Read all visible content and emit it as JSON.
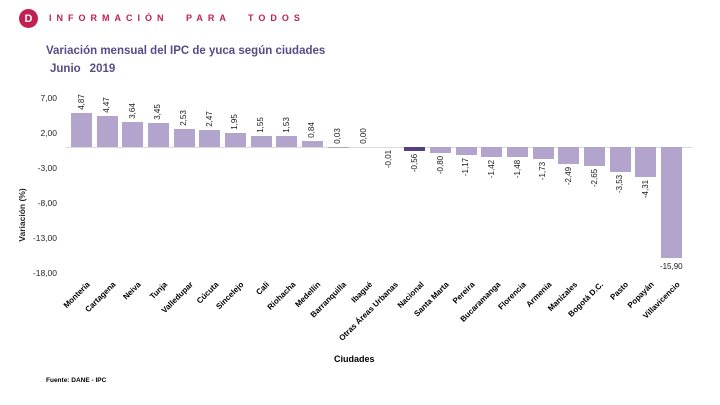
{
  "header": {
    "logo_letter": "D",
    "tagline": "INFORMACIÓN PARA TODOS",
    "accent_color": "#c22051"
  },
  "title": "Variación mensual del IPC de yuca según ciudades",
  "subtitle": {
    "month": "Junio",
    "year": "2019"
  },
  "footer": {
    "source": "Fuente: DANE - IPC"
  },
  "chart_data": {
    "type": "bar",
    "title": "Variación mensual del IPC de yuca según ciudades",
    "subtitle": "Junio 2019",
    "xlabel": "Ciudades",
    "ylabel": "Variación (%)",
    "ylim": [
      -18,
      7
    ],
    "grid": false,
    "legend": "none",
    "yticks": [
      7,
      2,
      -3,
      -8,
      -13,
      -18
    ],
    "ytick_labels": [
      "7,00",
      "2,00",
      "-3,00",
      "-8,00",
      "-13,00",
      "-18,00"
    ],
    "bar_color": "#b3a4cd",
    "highlight_color": "#563f7e",
    "highlight_category": "Nacional",
    "horizontal_value_label_category": "Villavicencio",
    "categories": [
      "Montería",
      "Cartagena",
      "Neiva",
      "Tunja",
      "Valledupar",
      "Cúcuta",
      "Sincelejo",
      "Cali",
      "Riohacha",
      "Medellín",
      "Barranquilla",
      "Ibagué",
      "Otras Áreas Urbanas",
      "Nacional",
      "Santa Marta",
      "Pereira",
      "Bucaramanga",
      "Florencia",
      "Armenia",
      "Manizales",
      "Bogotá D.C.",
      "Pasto",
      "Popayán",
      "Villavicencio"
    ],
    "values": [
      4.87,
      4.47,
      3.64,
      3.45,
      2.53,
      2.47,
      1.95,
      1.55,
      1.53,
      0.84,
      0.03,
      0.0,
      -0.01,
      -0.56,
      -0.8,
      -1.17,
      -1.42,
      -1.48,
      -1.73,
      -2.49,
      -2.65,
      -3.53,
      -4.31,
      -15.9
    ],
    "value_labels": [
      "4,87",
      "4,47",
      "3,64",
      "3,45",
      "2,53",
      "2,47",
      "1,95",
      "1,55",
      "1,53",
      "0,84",
      "0,03",
      "0,00",
      "-0,01",
      "-0,56",
      "-0,80",
      "-1,17",
      "-1,42",
      "-1,48",
      "-1,73",
      "-2,49",
      "-2,65",
      "-3,53",
      "-4,31",
      "-15,90"
    ]
  }
}
